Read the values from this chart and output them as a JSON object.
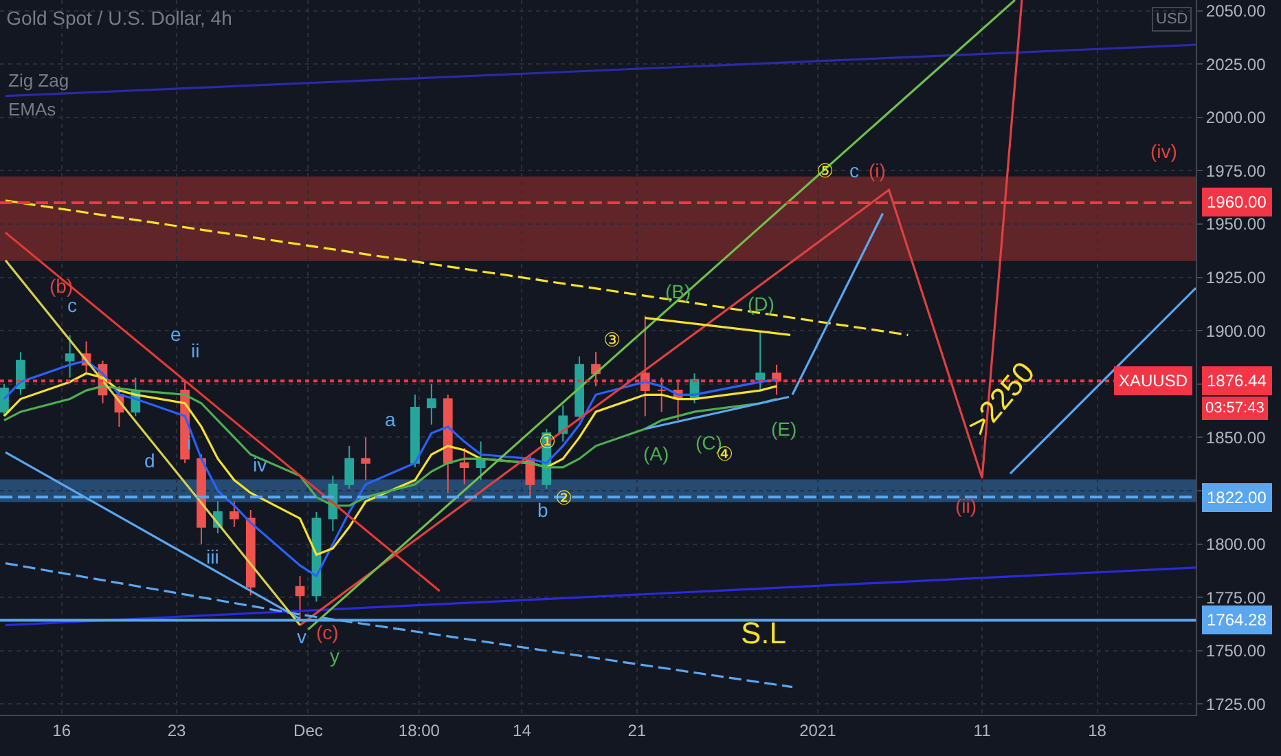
{
  "chart_data": {
    "type": "candlestick",
    "title": "Gold Spot / U.S. Dollar, 4h",
    "annotations": [
      "Zig Zag",
      "EMAs",
      "USD",
      "XAUUSD",
      "03:57:43",
      "(b)",
      "c",
      "e",
      "ii",
      "d",
      "i",
      "iv",
      "iii",
      "v",
      "(c)",
      "y",
      "a",
      "b",
      "①",
      "②",
      "③",
      "(B)",
      "(D)",
      "(A)",
      "(C)",
      "④",
      "(E)",
      "⑤",
      "c",
      "(i)",
      "(ii)",
      "(iv)",
      ">2250",
      "S.L"
    ],
    "x": [
      "2020-11-12T12:00",
      "2020-11-13T12:00",
      "2020-11-16T12:00",
      "2020-11-17T12:00",
      "2020-11-18T12:00",
      "2020-11-19T12:00",
      "2020-11-20T12:00",
      "2020-11-23T12:00",
      "2020-11-24T12:00",
      "2020-11-25T12:00",
      "2020-11-26T12:00",
      "2020-11-27T12:00",
      "2020-11-30T12:00",
      "2020-12-01T12:00",
      "2020-12-02T12:00",
      "2020-12-03T12:00",
      "2020-12-04T12:00",
      "2020-12-07T12:00",
      "2020-12-08T12:00",
      "2020-12-09T12:00",
      "2020-12-10T12:00",
      "2020-12-11T12:00",
      "2020-12-14T12:00",
      "2020-12-15T12:00",
      "2020-12-16T12:00",
      "2020-12-17T12:00",
      "2020-12-18T12:00",
      "2020-12-21T12:00",
      "2020-12-22T12:00",
      "2020-12-23T12:00",
      "2020-12-24T12:00",
      "2020-12-28T12:00",
      "2020-12-29T12:00"
    ],
    "ohlc": [
      [
        1862,
        1875,
        1860,
        1873
      ],
      [
        1873,
        1890,
        1870,
        1886
      ],
      [
        1886,
        1898,
        1878,
        1889
      ],
      [
        1889,
        1895,
        1880,
        1884
      ],
      [
        1884,
        1886,
        1866,
        1870
      ],
      [
        1870,
        1874,
        1855,
        1862
      ],
      [
        1862,
        1878,
        1860,
        1872
      ],
      [
        1872,
        1876,
        1838,
        1840
      ],
      [
        1840,
        1842,
        1800,
        1808
      ],
      [
        1808,
        1820,
        1805,
        1815
      ],
      [
        1815,
        1820,
        1808,
        1812
      ],
      [
        1812,
        1816,
        1776,
        1780
      ],
      [
        1780,
        1785,
        1764,
        1776
      ],
      [
        1776,
        1815,
        1773,
        1812
      ],
      [
        1812,
        1832,
        1806,
        1828
      ],
      [
        1828,
        1846,
        1826,
        1840
      ],
      [
        1840,
        1850,
        1830,
        1838
      ],
      [
        1838,
        1870,
        1836,
        1864
      ],
      [
        1864,
        1875,
        1856,
        1868
      ],
      [
        1868,
        1870,
        1824,
        1838
      ],
      [
        1838,
        1845,
        1828,
        1836
      ],
      [
        1836,
        1848,
        1830,
        1840
      ],
      [
        1840,
        1842,
        1822,
        1828
      ],
      [
        1828,
        1854,
        1826,
        1852
      ],
      [
        1852,
        1865,
        1848,
        1860
      ],
      [
        1860,
        1888,
        1858,
        1884
      ],
      [
        1884,
        1890,
        1874,
        1880
      ],
      [
        1880,
        1907,
        1860,
        1872
      ],
      [
        1872,
        1878,
        1862,
        1872
      ],
      [
        1872,
        1876,
        1858,
        1868
      ],
      [
        1868,
        1880,
        1866,
        1877
      ],
      [
        1877,
        1900,
        1872,
        1880
      ],
      [
        1880,
        1884,
        1870,
        1876.44
      ]
    ],
    "series": [
      {
        "type": "line",
        "color": "#2962ff",
        "line_style": "solid",
        "x": [
          "2020-11-12T12:00",
          "2020-11-13T12:00",
          "2020-11-16T12:00",
          "2020-11-17T12:00",
          "2020-11-18T12:00",
          "2020-11-19T12:00",
          "2020-11-20T12:00",
          "2020-11-23T12:00",
          "2020-11-24T12:00",
          "2020-11-25T12:00",
          "2020-11-26T12:00",
          "2020-11-27T12:00",
          "2020-11-30T12:00",
          "2020-12-01T12:00",
          "2020-12-02T12:00",
          "2020-12-03T12:00",
          "2020-12-04T12:00",
          "2020-12-07T12:00",
          "2020-12-08T12:00",
          "2020-12-09T12:00",
          "2020-12-10T12:00",
          "2020-12-11T12:00",
          "2020-12-14T12:00",
          "2020-12-15T12:00",
          "2020-12-16T12:00",
          "2020-12-17T12:00",
          "2020-12-18T12:00",
          "2020-12-21T12:00",
          "2020-12-22T12:00",
          "2020-12-23T12:00",
          "2020-12-24T12:00",
          "2020-12-28T12:00",
          "2020-12-29T12:00"
        ],
        "values": [
          1868,
          1876,
          1884,
          1886,
          1880,
          1870,
          1868,
          1860,
          1840,
          1825,
          1818,
          1810,
          1790,
          1785,
          1800,
          1815,
          1828,
          1838,
          1852,
          1855,
          1848,
          1842,
          1840,
          1838,
          1846,
          1856,
          1870,
          1876,
          1874,
          1870,
          1870,
          1876,
          1877
        ]
      },
      {
        "type": "line",
        "color": "#f5e12b",
        "line_style": "solid",
        "x": [
          "2020-11-12T12:00",
          "2020-11-13T12:00",
          "2020-11-16T12:00",
          "2020-11-17T12:00",
          "2020-11-18T12:00",
          "2020-11-19T12:00",
          "2020-11-20T12:00",
          "2020-11-23T12:00",
          "2020-11-24T12:00",
          "2020-11-25T12:00",
          "2020-11-26T12:00",
          "2020-11-27T12:00",
          "2020-11-30T12:00",
          "2020-12-01T12:00",
          "2020-12-02T12:00",
          "2020-12-03T12:00",
          "2020-12-04T12:00",
          "2020-12-07T12:00",
          "2020-12-08T12:00",
          "2020-12-09T12:00",
          "2020-12-10T12:00",
          "2020-12-11T12:00",
          "2020-12-14T12:00",
          "2020-12-15T12:00",
          "2020-12-16T12:00",
          "2020-12-17T12:00",
          "2020-12-18T12:00",
          "2020-12-21T12:00",
          "2020-12-22T12:00",
          "2020-12-23T12:00",
          "2020-12-24T12:00",
          "2020-12-28T12:00",
          "2020-12-29T12:00"
        ],
        "values": [
          1860,
          1868,
          1876,
          1880,
          1878,
          1872,
          1870,
          1866,
          1855,
          1840,
          1830,
          1824,
          1812,
          1795,
          1798,
          1808,
          1820,
          1830,
          1842,
          1846,
          1844,
          1840,
          1838,
          1836,
          1840,
          1850,
          1862,
          1870,
          1870,
          1868,
          1868,
          1872,
          1874
        ]
      },
      {
        "type": "line",
        "color": "#4caf50",
        "line_style": "solid",
        "x": [
          "2020-11-12T12:00",
          "2020-11-13T12:00",
          "2020-11-16T12:00",
          "2020-11-17T12:00",
          "2020-11-18T12:00",
          "2020-11-19T12:00",
          "2020-11-20T12:00",
          "2020-11-23T12:00",
          "2020-11-24T12:00",
          "2020-11-25T12:00",
          "2020-11-26T12:00",
          "2020-11-27T12:00",
          "2020-11-30T12:00",
          "2020-12-01T12:00",
          "2020-12-02T12:00",
          "2020-12-03T12:00",
          "2020-12-04T12:00",
          "2020-12-07T12:00",
          "2020-12-08T12:00",
          "2020-12-09T12:00",
          "2020-12-10T12:00",
          "2020-12-11T12:00",
          "2020-12-14T12:00",
          "2020-12-15T12:00",
          "2020-12-16T12:00",
          "2020-12-17T12:00",
          "2020-12-18T12:00",
          "2020-12-21T12:00",
          "2020-12-22T12:00",
          "2020-12-23T12:00",
          "2020-12-24T12:00",
          "2020-12-28T12:00",
          "2020-12-29T12:00"
        ],
        "values": [
          1858,
          1862,
          1868,
          1872,
          1874,
          1873,
          1872,
          1870,
          1866,
          1858,
          1850,
          1842,
          1832,
          1822,
          1818,
          1818,
          1822,
          1828,
          1834,
          1838,
          1840,
          1840,
          1838,
          1836,
          1836,
          1840,
          1846,
          1854,
          1858,
          1860,
          1862,
          1866,
          1868
        ]
      },
      {
        "type": "line",
        "color": "#2a2aa8",
        "line_style": "solid",
        "x": [
          "2020-11-12T14:00",
          "2021-01-24T00:00"
        ],
        "values": [
          2010,
          2034
        ]
      },
      {
        "type": "line",
        "color": "#2a2adb",
        "line_style": "solid",
        "x": [
          "2020-11-12T14:00",
          "2021-01-24T00:00"
        ],
        "values": [
          1762,
          1789
        ]
      },
      {
        "type": "line",
        "color": "#f5e12b",
        "line_style": "dashed",
        "x": [
          "2020-11-12T14:00",
          "2021-01-06T12:00"
        ],
        "values": [
          1961,
          1898
        ]
      },
      {
        "type": "line",
        "color": "#e04040",
        "line_style": "solid",
        "x": [
          "2020-11-30T12:00",
          "2021-01-05T08:00",
          "2021-01-11T00:00",
          "2021-01-13T10:00"
        ],
        "values": [
          1762,
          1966,
          1831,
          2055
        ]
      },
      {
        "type": "line",
        "color": "#5aa7f0",
        "line_style": "solid",
        "x": [
          "2020-12-30T11:00",
          "2021-01-04T23:00"
        ],
        "values": [
          1870,
          1955
        ]
      },
      {
        "type": "line",
        "color": "#5aa7f0",
        "line_style": "solid",
        "x": [
          "2021-01-12T17:00",
          "2021-01-24T00:00"
        ],
        "values": [
          1833,
          1920
        ]
      },
      {
        "type": "line",
        "color": "#5aa7f0",
        "line_style": "solid",
        "x": [
          "2020-11-12T14:00",
          "2020-11-30T12:00"
        ],
        "values": [
          1843,
          1765
        ]
      },
      {
        "type": "line",
        "color": "#5aa7f0",
        "line_style": "dashed",
        "x": [
          "2020-11-12T14:00",
          "2020-11-30T12:00",
          "2020-12-30T11:00"
        ],
        "values": [
          1791,
          1767,
          1733
        ]
      },
      {
        "type": "line",
        "color": "#6fbf4a",
        "line_style": "solid",
        "x": [
          "2020-12-01T00:00",
          "2021-01-13T00:00"
        ],
        "values": [
          1760,
          2055
        ]
      },
      {
        "type": "line",
        "color": "#e53935",
        "line_style": "solid",
        "x": [
          "2020-11-12T14:00",
          "2020-12-09T00:00"
        ],
        "values": [
          1946,
          1778
        ]
      },
      {
        "type": "line",
        "color": "#d8d04a",
        "line_style": "solid",
        "x": [
          "2020-11-12T14:00",
          "2020-11-30T12:00"
        ],
        "values": [
          1933,
          1762
        ]
      },
      {
        "type": "line",
        "color": "#f5e12b",
        "line_style": "solid",
        "x": [
          "2020-12-21T12:00",
          "2020-12-30T08:00"
        ],
        "values": [
          1906,
          1898
        ]
      },
      {
        "type": "line",
        "color": "#5aa7f0",
        "line_style": "solid",
        "x": [
          "2020-12-21T12:00",
          "2020-12-30T06:00"
        ],
        "values": [
          1854,
          1869
        ]
      }
    ],
    "ref_lines": [
      {
        "axis": "y",
        "value": 1960,
        "label": "1960.00",
        "color": "#f23645",
        "line_style": "dashed"
      },
      {
        "axis": "y",
        "value": 1822,
        "label": "1822.00",
        "color": "#5aa7f0",
        "line_style": "dashed"
      },
      {
        "axis": "y",
        "value": 1764.28,
        "label": "1764.28",
        "color": "#5aa7f0",
        "line_style": "solid"
      },
      {
        "axis": "y",
        "value": 1876.44,
        "label": "1876.44",
        "color": "#f23645",
        "line_style": "dotted"
      }
    ],
    "bands": [
      {
        "axis": "y",
        "from": 1933,
        "to": 1972,
        "color": "#7a2a2a"
      },
      {
        "axis": "y",
        "from": 1820,
        "to": 1830,
        "color": "#2b5d8f"
      }
    ],
    "xlim": [
      "2020-11-12T06:00",
      "2021-01-24T00:00"
    ],
    "xticks": [
      {
        "value": "2020-11-16",
        "label": "16"
      },
      {
        "value": "2020-11-23",
        "label": "23"
      },
      {
        "value": "2020-12-01",
        "label": "Dec"
      },
      {
        "value": "2020-12-07T18:00",
        "label": "18:00"
      },
      {
        "value": "2020-12-14",
        "label": "14"
      },
      {
        "value": "2020-12-21",
        "label": "21"
      },
      {
        "value": "2021-01-01",
        "label": "2021"
      },
      {
        "value": "2021-01-11",
        "label": "11"
      },
      {
        "value": "2021-01-18",
        "label": "18"
      }
    ],
    "ylim": [
      1720,
      2055
    ],
    "yticks": [
      {
        "value": 1725,
        "label": "1725.00"
      },
      {
        "value": 1750,
        "label": "1750.00"
      },
      {
        "value": 1775,
        "label": "1775.00"
      },
      {
        "value": 1800,
        "label": "1800.00"
      },
      {
        "value": 1825,
        "label": null
      },
      {
        "value": 1850,
        "label": "1850.00"
      },
      {
        "value": 1875,
        "label": null
      },
      {
        "value": 1900,
        "label": "1900.00"
      },
      {
        "value": 1925,
        "label": "1925.00"
      },
      {
        "value": 1950,
        "label": "1950.00"
      },
      {
        "value": 1975,
        "label": "1975.00"
      },
      {
        "value": 2000,
        "label": "2000.00"
      },
      {
        "value": 2025,
        "label": "2025.00"
      },
      {
        "value": 2050,
        "label": "2050.00"
      }
    ],
    "grid": true
  }
}
